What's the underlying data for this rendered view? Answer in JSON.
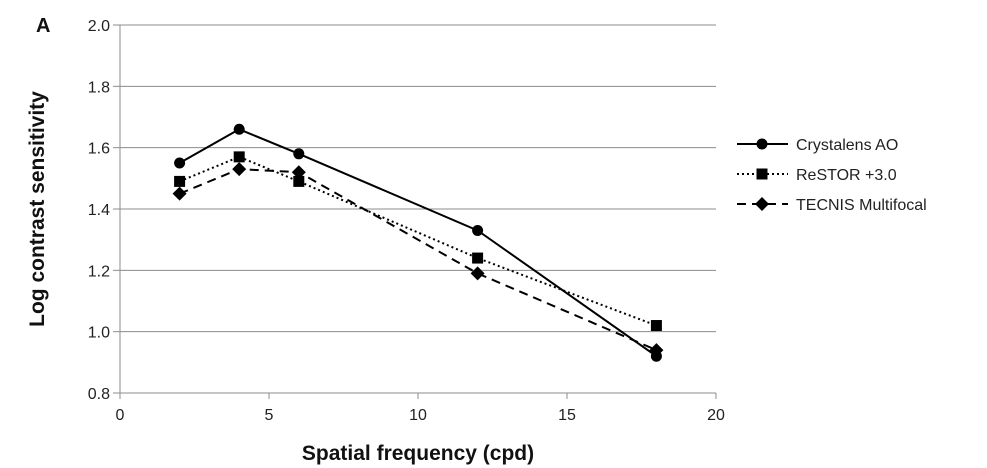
{
  "chart_data": {
    "type": "line",
    "panel_label": "A",
    "xlabel": "Spatial frequency (cpd)",
    "ylabel": "Log contrast sensitivity",
    "xlim": [
      0,
      20
    ],
    "ylim": [
      0.8,
      2.0
    ],
    "xticks": [
      "0",
      "5",
      "10",
      "15",
      "20"
    ],
    "yticks": [
      "0.8",
      "1.0",
      "1.2",
      "1.4",
      "1.6",
      "1.8",
      "2.0"
    ],
    "grid": "horizontal",
    "legend_position": "right",
    "series": [
      {
        "name": "Crystalens AO",
        "marker": "circle",
        "line_style": "solid",
        "color": "#000000",
        "x": [
          2,
          4,
          6,
          12,
          18
        ],
        "y": [
          1.55,
          1.66,
          1.58,
          1.33,
          0.92
        ]
      },
      {
        "name": "ReSTOR +3.0",
        "marker": "square",
        "line_style": "dotted",
        "color": "#000000",
        "x": [
          2,
          4,
          6,
          12,
          18
        ],
        "y": [
          1.49,
          1.57,
          1.49,
          1.24,
          1.02
        ]
      },
      {
        "name": "TECNIS Multifocal",
        "marker": "diamond",
        "line_style": "dashed",
        "color": "#000000",
        "x": [
          2,
          4,
          6,
          12,
          18
        ],
        "y": [
          1.45,
          1.53,
          1.52,
          1.19,
          0.94
        ]
      }
    ]
  }
}
